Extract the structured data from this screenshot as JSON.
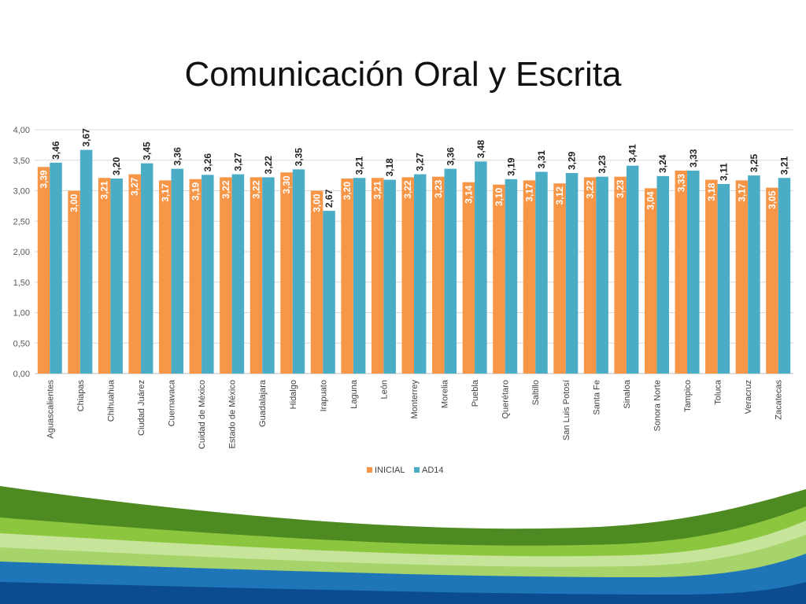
{
  "slide": {
    "title": "Comunicación Oral y Escrita"
  },
  "colors": {
    "inicial": "#F79646",
    "ad14": "#4BACC6",
    "grid": "#D9D9D9",
    "axis": "#BFBFBF"
  },
  "chart_data": {
    "type": "bar",
    "title": "",
    "xlabel": "",
    "ylabel": "",
    "ylim": [
      0,
      4
    ],
    "yticks": [
      "0,00",
      "0,50",
      "1,00",
      "1,50",
      "2,00",
      "2,50",
      "3,00",
      "3,50",
      "4,00"
    ],
    "grid": true,
    "legend_position": "bottom",
    "categories": [
      "Aguascalientes",
      "Chiapas",
      "Chihuahua",
      "Ciudad Juárez",
      "Cuernavaca",
      "Cuidad de México",
      "Estado de México",
      "Guadalajara",
      "Hidalgo",
      "Irapuato",
      "Laguna",
      "León",
      "Monterrey",
      "Morelia",
      "Puebla",
      "Querétaro",
      "Saltillo",
      "San Luis Potosí",
      "Santa Fe",
      "Sinaloa",
      "Sonora Norte",
      "Tampico",
      "Toluca",
      "Veracruz",
      "Zacatecas"
    ],
    "series": [
      {
        "name": "INICIAL",
        "values": [
          3.39,
          3.0,
          3.21,
          3.27,
          3.17,
          3.19,
          3.22,
          3.22,
          3.3,
          3.0,
          3.2,
          3.21,
          3.22,
          3.23,
          3.14,
          3.1,
          3.17,
          3.12,
          3.22,
          3.23,
          3.04,
          3.33,
          3.18,
          3.17,
          3.05
        ],
        "labels": [
          "3,39",
          "3,00",
          "3,21",
          "3,27",
          "3,17",
          "3,19",
          "3,22",
          "3,22",
          "3,30",
          "3,00",
          "3,20",
          "3,21",
          "3,22",
          "3,23",
          "3,14",
          "3,10",
          "3,17",
          "3,12",
          "3,22",
          "3,23",
          "3,04",
          "3,33",
          "3,18",
          "3,17",
          "3,05"
        ]
      },
      {
        "name": "AD14",
        "values": [
          3.46,
          3.67,
          3.2,
          3.45,
          3.36,
          3.26,
          3.27,
          3.22,
          3.35,
          2.67,
          3.21,
          3.18,
          3.27,
          3.36,
          3.48,
          3.19,
          3.31,
          3.29,
          3.23,
          3.41,
          3.24,
          3.33,
          3.11,
          3.25,
          3.21
        ],
        "labels": [
          "3,46",
          "3,67",
          "3,20",
          "3,45",
          "3,36",
          "3,26",
          "3,27",
          "3,22",
          "3,35",
          "2,67",
          "3,21",
          "3,18",
          "3,27",
          "3,36",
          "3,48",
          "3,19",
          "3,31",
          "3,29",
          "3,23",
          "3,41",
          "3,24",
          "3,33",
          "3,11",
          "3,25",
          "3,21"
        ]
      }
    ]
  }
}
